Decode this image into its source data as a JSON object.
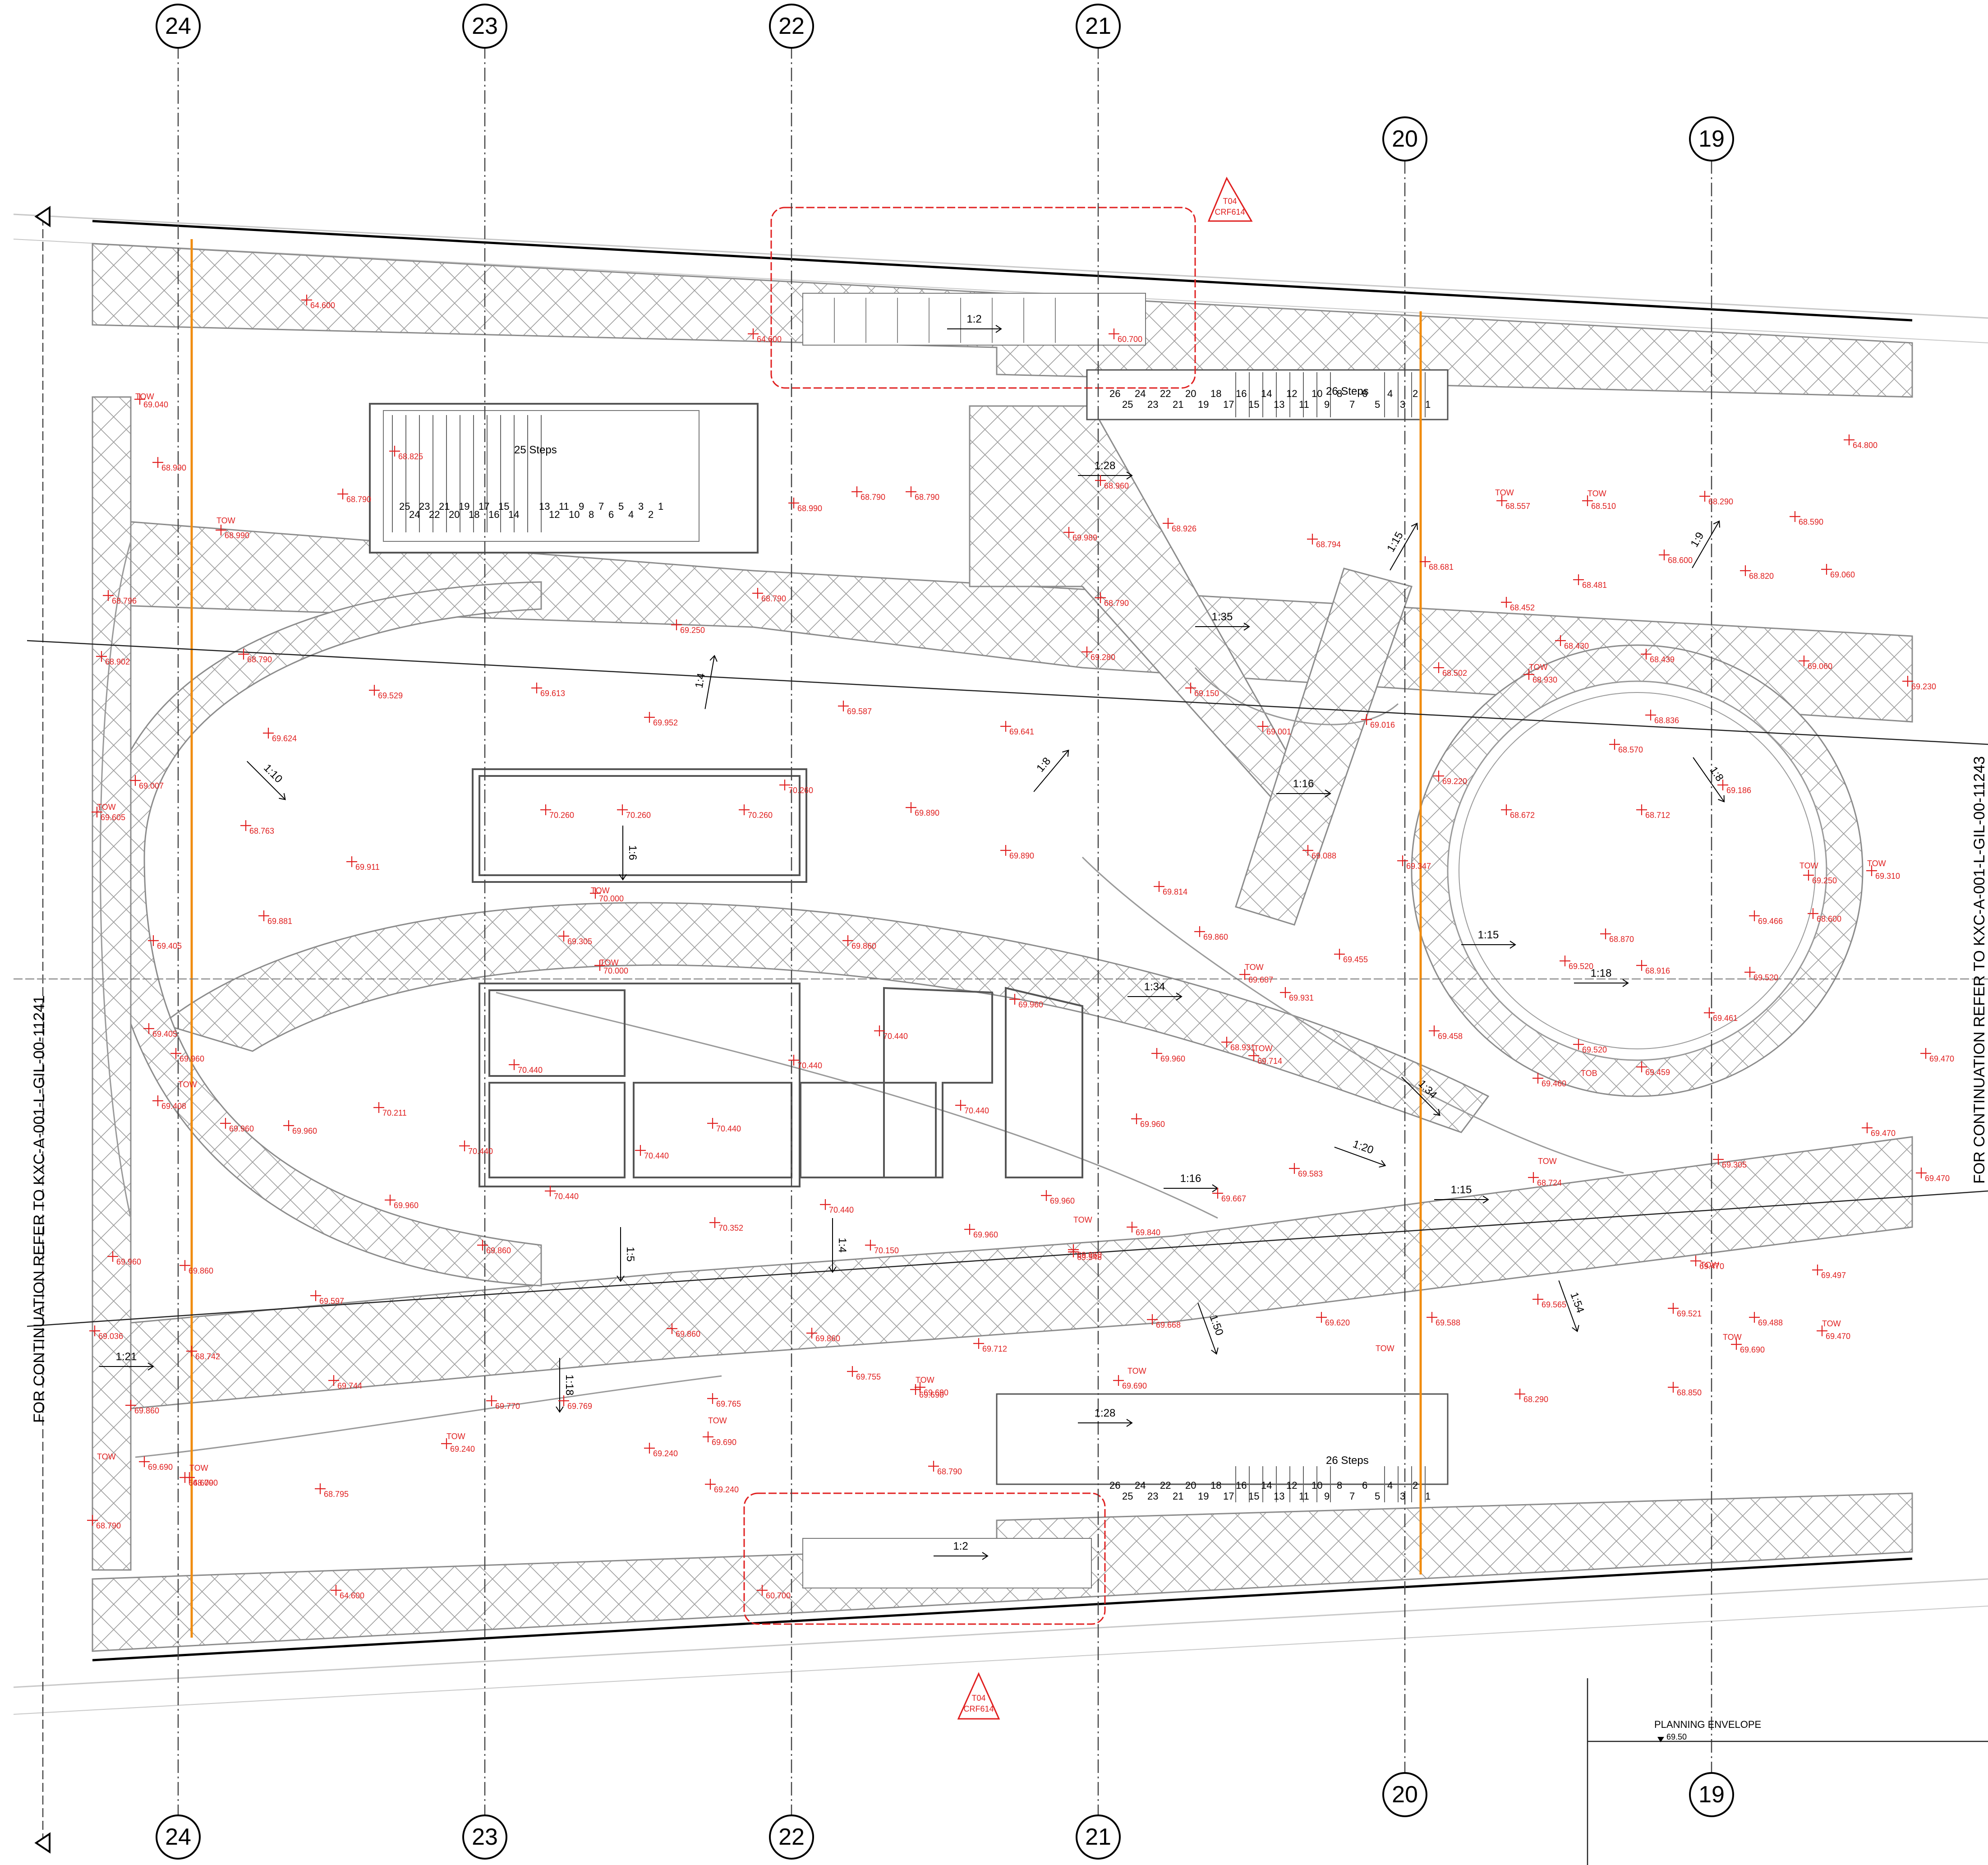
{
  "grid": {
    "top": [
      "24",
      "23",
      "22",
      "21",
      "20",
      "19"
    ],
    "bottom": [
      "24",
      "23",
      "22",
      "21",
      "20",
      "19"
    ]
  },
  "notes": {
    "continuation_left": "FOR CONTINUATION REFER TO KXC-A-001-L-GIL-00-11241",
    "continuation_right": "FOR CONTINUATION REFER TO KXC-A-001-L-GIL-00-11243",
    "planning_envelope": "PLANNING ENVELOPE",
    "planning_envelope_level": "69.50",
    "revision_tag_top": [
      "T04",
      "CRF614"
    ],
    "revision_tag_bottom": [
      "T04",
      "CRF614"
    ]
  },
  "stairs": {
    "west": {
      "label": "25 Steps",
      "top_numbers": [
        "25",
        "24",
        "23",
        "22",
        "21",
        "20",
        "19",
        "18",
        "17",
        "16",
        "15",
        "14"
      ],
      "bottom_numbers": [
        "13",
        "12",
        "11",
        "10",
        "9",
        "8",
        "7",
        "6",
        "5",
        "4",
        "3",
        "2",
        "1"
      ]
    },
    "north": {
      "label": "26 Steps",
      "numbers": [
        "26",
        "25",
        "24",
        "23",
        "22",
        "21",
        "20",
        "19",
        "18",
        "17",
        "16",
        "15",
        "14",
        "13",
        "12",
        "11",
        "10",
        "9",
        "8",
        "7",
        "6",
        "5",
        "4",
        "3",
        "2",
        "1"
      ]
    },
    "south": {
      "label": "26 Steps",
      "numbers": [
        "26",
        "25",
        "24",
        "23",
        "22",
        "21",
        "20",
        "19",
        "18",
        "17",
        "16",
        "15",
        "14",
        "13",
        "12",
        "11",
        "10",
        "9",
        "8",
        "7",
        "6",
        "5",
        "4",
        "3",
        "2",
        "1"
      ]
    }
  },
  "gradients": [
    {
      "label": "1:2",
      "rot": 0
    },
    {
      "label": "1:28",
      "rot": 0
    },
    {
      "label": "1:35",
      "rot": 0
    },
    {
      "label": "1:4",
      "rot": -80
    },
    {
      "label": "1:10",
      "rot": 45
    },
    {
      "label": "1:8",
      "rot": -50
    },
    {
      "label": "1:6",
      "rot": 90
    },
    {
      "label": "1:16",
      "rot": 0
    },
    {
      "label": "1:15",
      "rot": -60
    },
    {
      "label": "1:9",
      "rot": -60
    },
    {
      "label": "1:8",
      "rot": 55
    },
    {
      "label": "1:15",
      "rot": 0
    },
    {
      "label": "1:18",
      "rot": 0
    },
    {
      "label": "1:34",
      "rot": 0
    },
    {
      "label": "1:34",
      "rot": 45
    },
    {
      "label": "1:20",
      "rot": 20
    },
    {
      "label": "1:16",
      "rot": 0
    },
    {
      "label": "1:15",
      "rot": 0
    },
    {
      "label": "1:5",
      "rot": 90
    },
    {
      "label": "1:4",
      "rot": 90
    },
    {
      "label": "1:50",
      "rot": 70
    },
    {
      "label": "1:54",
      "rot": 70
    },
    {
      "label": "1:21",
      "rot": 0
    },
    {
      "label": "1:18",
      "rot": 90
    },
    {
      "label": "1:28",
      "rot": 0
    },
    {
      "label": "1:2",
      "rot": 0
    }
  ],
  "levels": [
    "64.600",
    "64.600",
    "60.700",
    "69.040",
    "68.790",
    "68.825",
    "68.990",
    "68.790",
    "68.990",
    "68.790",
    "68.990",
    "68.960",
    "68.926",
    "68.794",
    "68.557",
    "68.510",
    "64.800",
    "68.290",
    "68.590",
    "69.989",
    "68.681",
    "68.600",
    "68.820",
    "69.060",
    "68.796",
    "68.481",
    "68.452",
    "69.250",
    "68.790",
    "68.790",
    "68.902",
    "68.790",
    "69.529",
    "69.613",
    "69.952",
    "69.587",
    "69.641",
    "69.280",
    "69.150",
    "69.001",
    "69.016",
    "68.502",
    "68.930",
    "68.430",
    "68.439",
    "68.836",
    "69.060",
    "69.230",
    "69.624",
    "69.007",
    "69.605",
    "68.763",
    "70.260",
    "70.260",
    "70.260",
    "70.260",
    "69.890",
    "69.890",
    "69.220",
    "68.570",
    "68.672",
    "68.712",
    "69.186",
    "69.911",
    "69.088",
    "69.347",
    "69.250",
    "69.310",
    "68.600",
    "69.881",
    "70.000",
    "69.305",
    "70.000",
    "69.860",
    "69.814",
    "69.860",
    "69.455",
    "69.466",
    "68.870",
    "68.916",
    "69.520",
    "69.520",
    "69.687",
    "69.931",
    "69.405",
    "69.405",
    "69.960",
    "70.440",
    "70.440",
    "69.960",
    "69.960",
    "70.440",
    "68.931",
    "69.714",
    "69.458",
    "69.520",
    "69.461",
    "69.470",
    "69.460",
    "69.459",
    "69.408",
    "69.960",
    "69.960",
    "70.211",
    "70.440",
    "70.440",
    "70.440",
    "70.440",
    "69.960",
    "69.583",
    "69.470",
    "69.667",
    "69.470",
    "68.724",
    "69.305",
    "69.960",
    "70.440",
    "69.960",
    "70.352",
    "70.440",
    "70.150",
    "69.960",
    "69.840",
    "69.960",
    "69.960",
    "69.860",
    "69.860",
    "69.597",
    "69.546",
    "69.470",
    "69.497",
    "69.036",
    "68.742",
    "69.860",
    "69.860",
    "69.755",
    "69.712",
    "69.668",
    "69.620",
    "69.588",
    "69.565",
    "69.521",
    "69.488",
    "69.470",
    "69.744",
    "69.770",
    "69.769",
    "69.765",
    "69.690",
    "69.690",
    "68.850",
    "69.690",
    "68.290",
    "69.860",
    "69.690",
    "69.690",
    "69.240",
    "69.240",
    "69.690",
    "68.790",
    "69.240",
    "68.790",
    "68.795",
    "68.790",
    "64.600",
    "64.600",
    "60.700"
  ],
  "tow_label": "TOW",
  "tob_label": "TOB"
}
